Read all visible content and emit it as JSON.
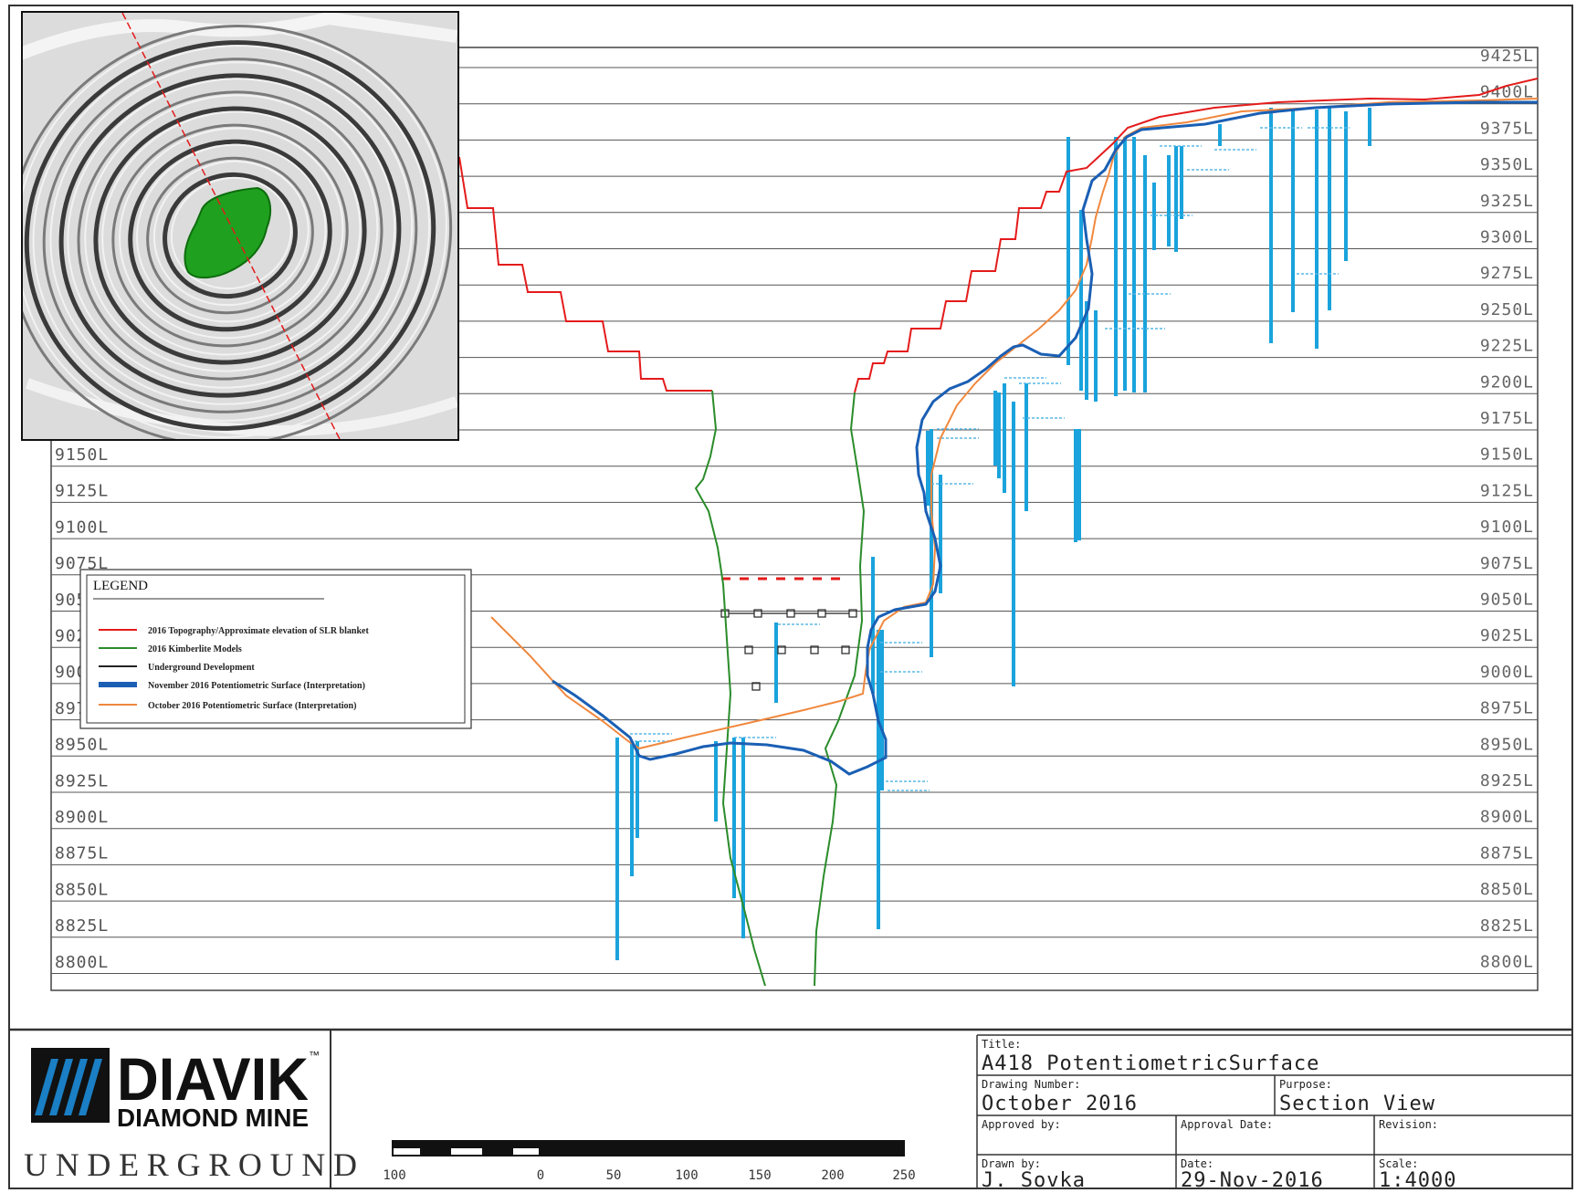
{
  "levels": [
    "9425L",
    "9400L",
    "9375L",
    "9350L",
    "9325L",
    "9300L",
    "9275L",
    "9250L",
    "9225L",
    "9200L",
    "9175L",
    "9150L",
    "9125L",
    "9100L",
    "9075L",
    "9050L",
    "9025L",
    "9000L",
    "8975L",
    "8950L",
    "8925L",
    "8900L",
    "8875L",
    "8850L",
    "8825L",
    "8800L"
  ],
  "legend": {
    "title": "LEGEND",
    "items": [
      {
        "label": "2016 Topography/Approximate elevation of SLR blanket",
        "color": "#e41b1b"
      },
      {
        "label": "2016 Kimberlite Models",
        "color": "#2a8c2a"
      },
      {
        "label": "Underground Development",
        "color": "#222222"
      },
      {
        "label": "November 2016 Potentiometric Surface (Interpretation)",
        "color": "#1a5fb4"
      },
      {
        "label": "October 2016 Potentiometric Surface (Interpretation)",
        "color": "#f0883e"
      }
    ]
  },
  "colors": {
    "topography": "#e41b1b",
    "kimberlite": "#2a8c2a",
    "november": "#1a5fb4",
    "october": "#f0883e",
    "piezometer": "#1aa3dc"
  },
  "logo": {
    "name": "DIAVIK",
    "tm": "™",
    "subtitle": "DIAMOND MINE",
    "division": "UNDERGROUND"
  },
  "scale_bar": {
    "ticks": [
      "100",
      "0",
      "50",
      "100",
      "150",
      "200",
      "250"
    ]
  },
  "title_block": {
    "title_label": "Title:",
    "title": "A418 PotentiometricSurface",
    "drawing_number_label": "Drawing Number:",
    "drawing_number": "October 2016",
    "purpose_label": "Purpose:",
    "purpose": "Section View",
    "approved_by_label": "Approved by:",
    "approved_by": "",
    "approval_date_label": "Approval Date:",
    "approval_date": "",
    "revision_label": "Revision:",
    "revision": "",
    "drawn_by_label": "Drawn by:",
    "drawn_by": "J. Sovka",
    "date_label": "Date:",
    "date": "29-Nov-2016",
    "scale_label": "Scale:",
    "scale": "1:4000"
  }
}
